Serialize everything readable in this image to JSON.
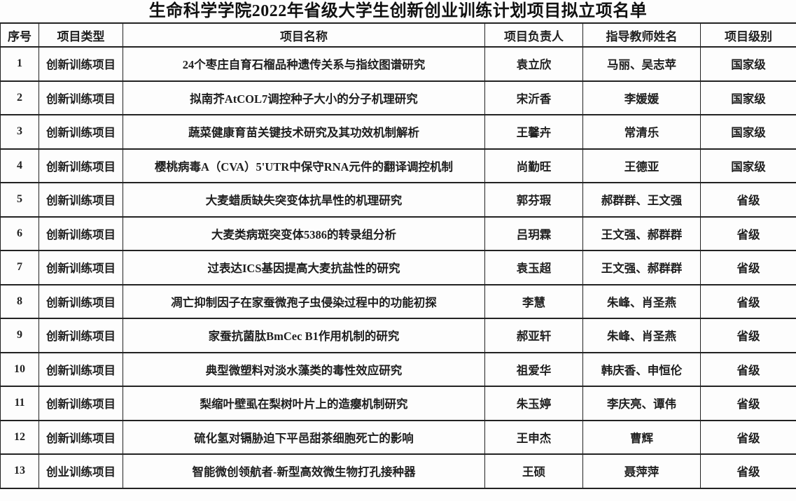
{
  "page": {
    "title": "生命科学学院2022年省级大学生创新创业训练计划项目拟立项名单"
  },
  "table": {
    "headers": [
      "序号",
      "项目类型",
      "项目名称",
      "项目负责人",
      "指导教师姓名",
      "项目级别"
    ],
    "rows": [
      {
        "no": "1",
        "type": "创新训练项目",
        "name": "24个枣庄自育石榴品种遗传关系与指纹图谱研究",
        "leader": "袁立欣",
        "advisors": "马丽、吴志苹",
        "level": "国家级"
      },
      {
        "no": "2",
        "type": "创新训练项目",
        "name": "拟南芥AtCOL7调控种子大小的分子机理研究",
        "leader": "宋沂香",
        "advisors": "李媛媛",
        "level": "国家级"
      },
      {
        "no": "3",
        "type": "创新训练项目",
        "name": "蔬菜健康育苗关键技术研究及其功效机制解析",
        "leader": "王馨卉",
        "advisors": "常清乐",
        "level": "国家级"
      },
      {
        "no": "4",
        "type": "创新训练项目",
        "name": "樱桃病毒A（CVA）5'UTR中保守RNA元件的翻译调控机制",
        "leader": "尚勤旺",
        "advisors": "王德亚",
        "level": "国家级"
      },
      {
        "no": "5",
        "type": "创新训练项目",
        "name": "大麦蜡质缺失突变体抗旱性的机理研究",
        "leader": "郭芬瑕",
        "advisors": "郝群群、王文强",
        "level": "省级"
      },
      {
        "no": "6",
        "type": "创新训练项目",
        "name": "大麦类病斑突变体5386的转录组分析",
        "leader": "吕玥霖",
        "advisors": "王文强、郝群群",
        "level": "省级"
      },
      {
        "no": "7",
        "type": "创新训练项目",
        "name": "过表达ICS基因提高大麦抗盐性的研究",
        "leader": "袁玉超",
        "advisors": "王文强、郝群群",
        "level": "省级"
      },
      {
        "no": "8",
        "type": "创新训练项目",
        "name": "凋亡抑制因子在家蚕微孢子虫侵染过程中的功能初探",
        "leader": "李慧",
        "advisors": "朱峰、肖圣燕",
        "level": "省级"
      },
      {
        "no": "9",
        "type": "创新训练项目",
        "name": "家蚕抗菌肽BmCec B1作用机制的研究",
        "leader": "郝亚轩",
        "advisors": "朱峰、肖圣燕",
        "level": "省级"
      },
      {
        "no": "10",
        "type": "创新训练项目",
        "name": "典型微塑料对淡水藻类的毒性效应研究",
        "leader": "祖爱华",
        "advisors": "韩庆香、申恒伦",
        "level": "省级"
      },
      {
        "no": "11",
        "type": "创新训练项目",
        "name": "梨缩叶壁虱在梨树叶片上的造瘿机制研究",
        "leader": "朱玉婷",
        "advisors": "李庆亮、谭伟",
        "level": "省级"
      },
      {
        "no": "12",
        "type": "创新训练项目",
        "name": "硫化氢对镉胁迫下平邑甜茶细胞死亡的影响",
        "leader": "王申杰",
        "advisors": "曹辉",
        "level": "省级"
      },
      {
        "no": "13",
        "type": "创业训练项目",
        "name": "智能微创领航者-新型高效微生物打孔接种器",
        "leader": "王硕",
        "advisors": "聂萍萍",
        "level": "省级"
      }
    ]
  }
}
